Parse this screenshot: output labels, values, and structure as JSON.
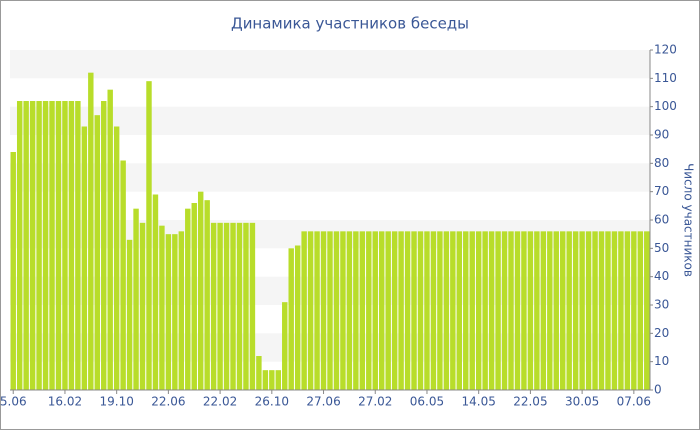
{
  "chart_data": {
    "type": "bar",
    "title": "Динамика участников беседы",
    "y_label": "Число участников",
    "categories": [
      "5.06",
      null,
      null,
      null,
      null,
      null,
      null,
      null,
      "16.02",
      null,
      null,
      null,
      null,
      null,
      null,
      null,
      "19.10",
      null,
      null,
      null,
      null,
      null,
      null,
      null,
      "22.06",
      null,
      null,
      null,
      null,
      null,
      null,
      null,
      "22.02",
      null,
      null,
      null,
      null,
      null,
      null,
      null,
      "26.10",
      null,
      null,
      null,
      null,
      null,
      null,
      null,
      "27.06",
      null,
      null,
      null,
      null,
      null,
      null,
      null,
      "27.02",
      null,
      null,
      null,
      null,
      null,
      null,
      null,
      "06.05",
      null,
      null,
      null,
      null,
      null,
      null,
      null,
      "14.05",
      null,
      null,
      null,
      null,
      null,
      null,
      null,
      "22.05",
      null,
      null,
      null,
      null,
      null,
      null,
      null,
      "30.05",
      null,
      null,
      null,
      null,
      null,
      null,
      null,
      "07.06",
      null,
      null
    ],
    "values": [
      84,
      102,
      102,
      102,
      102,
      102,
      102,
      102,
      102,
      102,
      102,
      93,
      112,
      97,
      102,
      106,
      93,
      81,
      53,
      64,
      59,
      109,
      69,
      58,
      55,
      55,
      56,
      64,
      66,
      70,
      67,
      59,
      59,
      59,
      59,
      59,
      59,
      59,
      12,
      7,
      7,
      7,
      31,
      50,
      51,
      56,
      56,
      56,
      56,
      56,
      56,
      56,
      56,
      56,
      56,
      56,
      56,
      56,
      56,
      56,
      56,
      56,
      56,
      56,
      56,
      56,
      56,
      56,
      56,
      56,
      56,
      56,
      56,
      56,
      56,
      56,
      56,
      56,
      56,
      56,
      56,
      56,
      56,
      56,
      56,
      56,
      56,
      56,
      56,
      56,
      56,
      56,
      56,
      56,
      56,
      56,
      56,
      56,
      56
    ],
    "color": "#b8dd2a",
    "ylim": [
      0,
      120
    ],
    "yticks": [
      0,
      10,
      20,
      30,
      40,
      50,
      60,
      70,
      80,
      90,
      100,
      110,
      120
    ],
    "grid": true,
    "y_axis_side": "right"
  }
}
